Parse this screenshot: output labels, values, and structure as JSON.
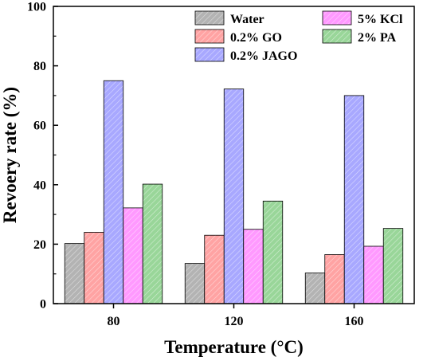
{
  "chart_data": {
    "type": "bar",
    "xlabel": "Temperature (°C)",
    "ylabel": "Revoery rate (%)",
    "ylim": [
      0,
      100
    ],
    "yticks": [
      "0",
      "20",
      "40",
      "60",
      "80",
      "100"
    ],
    "categories": [
      "80",
      "120",
      "160"
    ],
    "grid": false,
    "legend_position": "top-right",
    "series": [
      {
        "name": "Water",
        "color": "#b3b3b3",
        "hatch": "diagonal",
        "values": [
          20.2,
          13.5,
          10.3
        ]
      },
      {
        "name": "0.2% GO",
        "color": "#ffa3a3",
        "hatch": "diagonal",
        "values": [
          24.0,
          23.0,
          16.5
        ]
      },
      {
        "name": "0.2% JAGO",
        "color": "#a8a8ff",
        "hatch": "diagonal",
        "values": [
          75.0,
          72.2,
          70.0
        ]
      },
      {
        "name": "5% KCl",
        "color": "#ff99ff",
        "hatch": "diagonal",
        "values": [
          32.2,
          25.0,
          19.3
        ]
      },
      {
        "name": "2% PA",
        "color": "#99d699",
        "hatch": "diagonal",
        "values": [
          40.2,
          34.5,
          25.3
        ]
      }
    ]
  }
}
